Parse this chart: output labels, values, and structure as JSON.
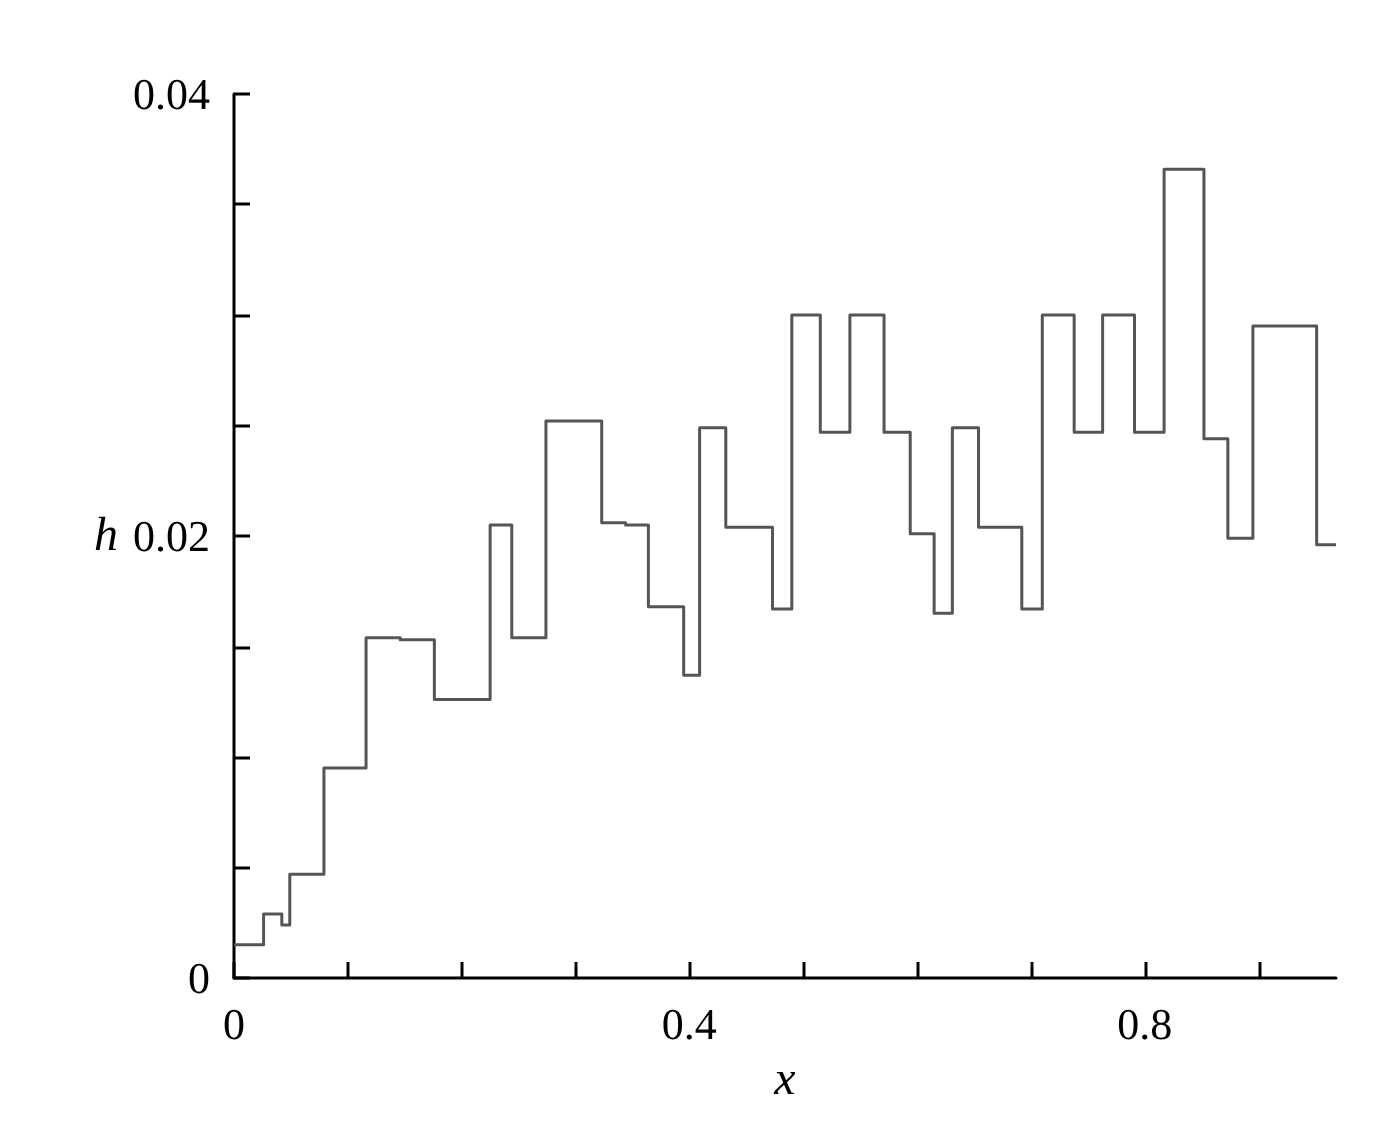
{
  "chart_data": {
    "type": "step",
    "xlabel": "x",
    "ylabel": "h",
    "color": "#555555",
    "x": [
      0,
      0.026,
      0.042,
      0.049,
      0.079,
      0.116,
      0.146,
      0.176,
      0.225,
      0.244,
      0.274,
      0.323,
      0.344,
      0.364,
      0.395,
      0.409,
      0.432,
      0.473,
      0.49,
      0.515,
      0.541,
      0.571,
      0.594,
      0.615,
      0.631,
      0.654,
      0.692,
      0.71,
      0.738,
      0.763,
      0.791,
      0.817,
      0.852,
      0.873,
      0.895,
      0.951,
      0.968
    ],
    "values": [
      0.0015,
      0.0029,
      0.0024,
      0.0047,
      0.0095,
      0.0154,
      0.0153,
      0.0126,
      0.0205,
      0.0154,
      0.0252,
      0.0206,
      0.0205,
      0.0168,
      0.0137,
      0.0249,
      0.0204,
      0.0167,
      0.03,
      0.0247,
      0.03,
      0.0247,
      0.0201,
      0.0165,
      0.0249,
      0.0204,
      0.0167,
      0.03,
      0.0247,
      0.03,
      0.0247,
      0.0366,
      0.0244,
      0.0199,
      0.0295,
      0.0196,
      0.0196
    ],
    "xlim": [
      0,
      0.968
    ],
    "xticks": [
      0,
      {
        "value": 0.1,
        "label": null
      },
      {
        "value": 0.2,
        "label": null
      },
      {
        "value": 0.3,
        "label": null
      },
      0.4,
      {
        "value": 0.5,
        "label": null
      },
      {
        "value": 0.6,
        "label": null
      },
      {
        "value": 0.7,
        "label": null
      },
      0.8,
      {
        "value": 0.9,
        "label": null
      }
    ],
    "ylim": [
      0,
      0.04
    ],
    "yticks": [
      0,
      {
        "value": 0.005,
        "label": null
      },
      {
        "value": 0.01,
        "label": null
      },
      {
        "value": 0.015,
        "label": null
      },
      0.02,
      {
        "value": 0.025,
        "label": null
      },
      {
        "value": 0.03,
        "label": null
      },
      {
        "value": 0.035,
        "label": null
      },
      0.04
    ],
    "grid": false,
    "marker": "none",
    "line_style": "solid"
  }
}
